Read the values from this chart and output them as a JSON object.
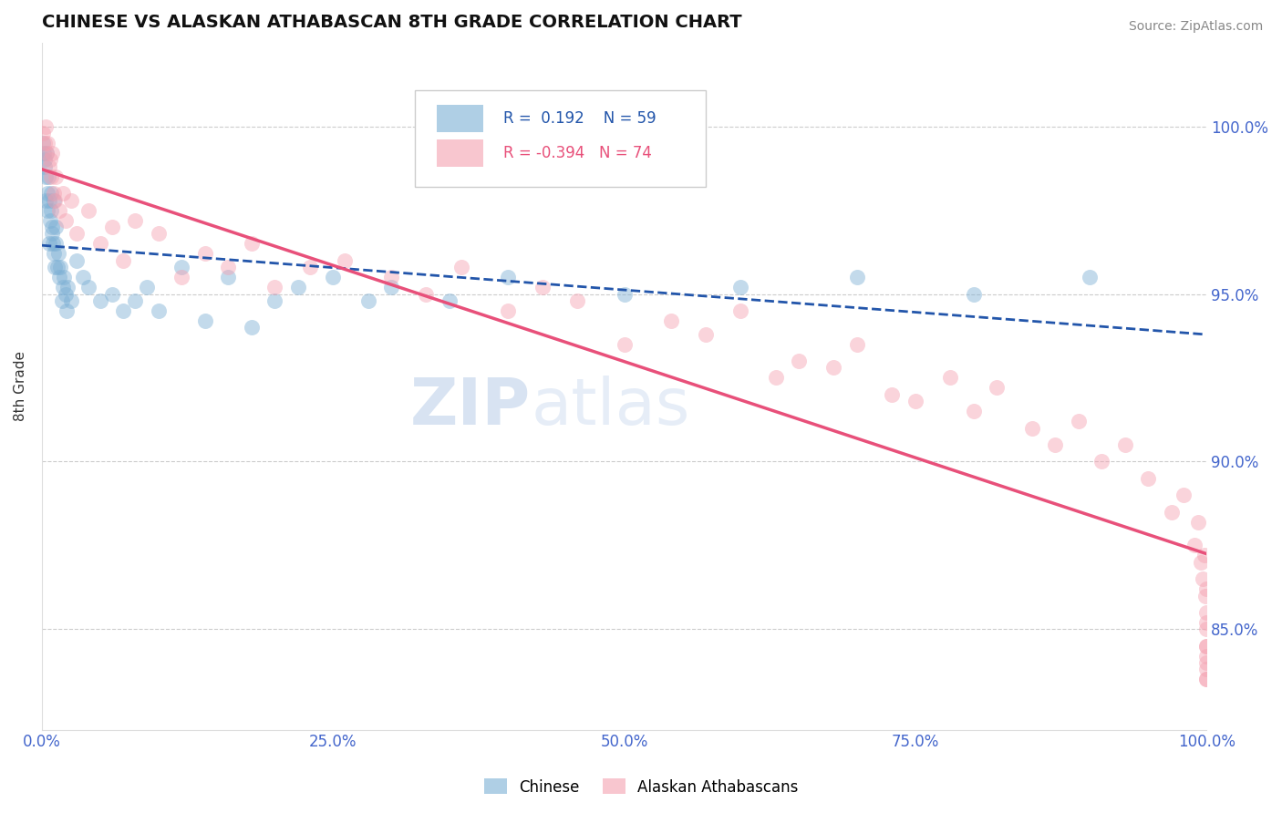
{
  "title": "CHINESE VS ALASKAN ATHABASCAN 8TH GRADE CORRELATION CHART",
  "source": "Source: ZipAtlas.com",
  "ylabel": "8th Grade",
  "xlim": [
    0.0,
    100.0
  ],
  "ylim": [
    82.0,
    102.5
  ],
  "yticks": [
    85.0,
    90.0,
    95.0,
    100.0
  ],
  "xticks": [
    0.0,
    25.0,
    50.0,
    75.0,
    100.0
  ],
  "chinese_R": 0.192,
  "chinese_N": 59,
  "athabascan_R": -0.394,
  "athabascan_N": 74,
  "chinese_color": "#7BAFD4",
  "athabascan_color": "#F4A0B0",
  "chinese_trend_color": "#2255AA",
  "athabascan_trend_color": "#E8507A",
  "tick_color": "#4466CC",
  "chinese_x": [
    0.1,
    0.15,
    0.2,
    0.25,
    0.3,
    0.35,
    0.4,
    0.45,
    0.5,
    0.55,
    0.6,
    0.65,
    0.7,
    0.75,
    0.8,
    0.85,
    0.9,
    0.95,
    1.0,
    1.05,
    1.1,
    1.15,
    1.2,
    1.3,
    1.4,
    1.5,
    1.6,
    1.7,
    1.8,
    1.9,
    2.0,
    2.1,
    2.2,
    2.5,
    3.0,
    3.5,
    4.0,
    5.0,
    6.0,
    7.0,
    8.0,
    9.0,
    10.0,
    12.0,
    14.0,
    16.0,
    18.0,
    20.0,
    22.0,
    25.0,
    28.0,
    30.0,
    35.0,
    40.0,
    50.0,
    60.0,
    70.0,
    80.0,
    90.0
  ],
  "chinese_y": [
    99.5,
    99.2,
    98.8,
    99.0,
    98.5,
    97.8,
    99.2,
    98.0,
    97.5,
    98.5,
    97.8,
    96.5,
    97.2,
    98.0,
    97.5,
    96.8,
    97.0,
    96.5,
    97.8,
    96.2,
    95.8,
    97.0,
    96.5,
    95.8,
    96.2,
    95.5,
    95.8,
    94.8,
    95.2,
    95.5,
    95.0,
    94.5,
    95.2,
    94.8,
    96.0,
    95.5,
    95.2,
    94.8,
    95.0,
    94.5,
    94.8,
    95.2,
    94.5,
    95.8,
    94.2,
    95.5,
    94.0,
    94.8,
    95.2,
    95.5,
    94.8,
    95.2,
    94.8,
    95.5,
    95.0,
    95.2,
    95.5,
    95.0,
    95.5
  ],
  "athabascan_x": [
    0.1,
    0.2,
    0.3,
    0.4,
    0.5,
    0.6,
    0.7,
    0.8,
    0.9,
    1.0,
    1.1,
    1.2,
    1.5,
    1.8,
    2.0,
    2.5,
    3.0,
    4.0,
    5.0,
    6.0,
    7.0,
    8.0,
    10.0,
    12.0,
    14.0,
    16.0,
    18.0,
    20.0,
    23.0,
    26.0,
    30.0,
    33.0,
    36.0,
    40.0,
    43.0,
    46.0,
    50.0,
    54.0,
    57.0,
    60.0,
    63.0,
    65.0,
    68.0,
    70.0,
    73.0,
    75.0,
    78.0,
    80.0,
    82.0,
    85.0,
    87.0,
    89.0,
    91.0,
    93.0,
    95.0,
    97.0,
    98.0,
    99.0,
    99.3,
    99.5,
    99.7,
    99.8,
    99.9,
    100.0,
    100.0,
    100.0,
    100.0,
    100.0,
    100.0,
    100.0,
    100.0,
    100.0,
    100.0,
    100.0
  ],
  "athabascan_y": [
    99.8,
    99.5,
    100.0,
    99.2,
    99.5,
    98.8,
    99.0,
    98.5,
    99.2,
    98.0,
    97.8,
    98.5,
    97.5,
    98.0,
    97.2,
    97.8,
    96.8,
    97.5,
    96.5,
    97.0,
    96.0,
    97.2,
    96.8,
    95.5,
    96.2,
    95.8,
    96.5,
    95.2,
    95.8,
    96.0,
    95.5,
    95.0,
    95.8,
    94.5,
    95.2,
    94.8,
    93.5,
    94.2,
    93.8,
    94.5,
    92.5,
    93.0,
    92.8,
    93.5,
    92.0,
    91.8,
    92.5,
    91.5,
    92.2,
    91.0,
    90.5,
    91.2,
    90.0,
    90.5,
    89.5,
    88.5,
    89.0,
    87.5,
    88.2,
    87.0,
    86.5,
    87.2,
    86.0,
    85.5,
    86.2,
    85.0,
    84.5,
    85.2,
    84.0,
    83.5,
    84.2,
    83.8,
    84.5,
    83.5
  ]
}
